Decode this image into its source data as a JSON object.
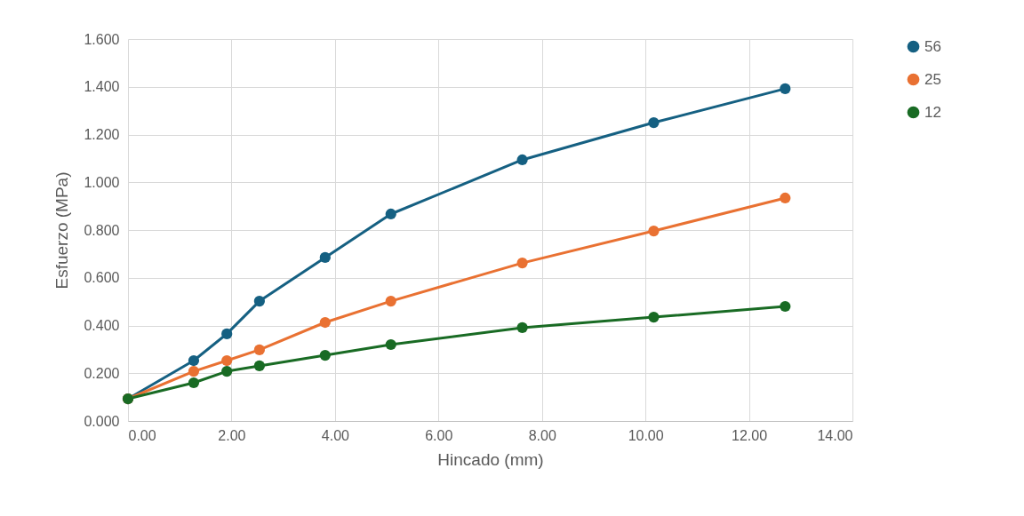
{
  "chart_data": {
    "type": "line",
    "xlabel": "Hincado (mm)",
    "ylabel": "Esfuerzo (MPa)",
    "x": [
      0,
      1.27,
      1.91,
      2.54,
      3.81,
      5.08,
      7.62,
      10.16,
      12.7
    ],
    "series": [
      {
        "name": "56",
        "color": "#156082",
        "values": [
          0.093,
          0.253,
          0.365,
          0.502,
          0.685,
          0.867,
          1.094,
          1.25,
          1.392
        ]
      },
      {
        "name": "25",
        "color": "#e97132",
        "values": [
          0.093,
          0.208,
          0.253,
          0.298,
          0.413,
          0.502,
          0.662,
          0.796,
          0.934
        ]
      },
      {
        "name": "12",
        "color": "#196b24",
        "values": [
          0.093,
          0.16,
          0.208,
          0.231,
          0.275,
          0.32,
          0.391,
          0.435,
          0.48
        ]
      }
    ],
    "xlim": [
      0,
      14
    ],
    "xticks": [
      {
        "value": 0,
        "label": "0.00"
      },
      {
        "value": 2,
        "label": "2.00"
      },
      {
        "value": 4,
        "label": "4.00"
      },
      {
        "value": 6,
        "label": "6.00"
      },
      {
        "value": 8,
        "label": "8.00"
      },
      {
        "value": 10,
        "label": "10.00"
      },
      {
        "value": 12,
        "label": "12.00"
      },
      {
        "value": 14,
        "label": "14.00"
      }
    ],
    "ylim": [
      0,
      1.6
    ],
    "yticks": [
      {
        "value": 0,
        "label": "0.000"
      },
      {
        "value": 0.2,
        "label": "0.200"
      },
      {
        "value": 0.4,
        "label": "0.400"
      },
      {
        "value": 0.6,
        "label": "0.600"
      },
      {
        "value": 0.8,
        "label": "0.800"
      },
      {
        "value": 1,
        "label": "1.000"
      },
      {
        "value": 1.2,
        "label": "1.200"
      },
      {
        "value": 1.4,
        "label": "1.400"
      },
      {
        "value": 1.6,
        "label": "1.600"
      }
    ],
    "grid": true,
    "legend": "right",
    "marker": "circle",
    "line_style": "solid"
  }
}
